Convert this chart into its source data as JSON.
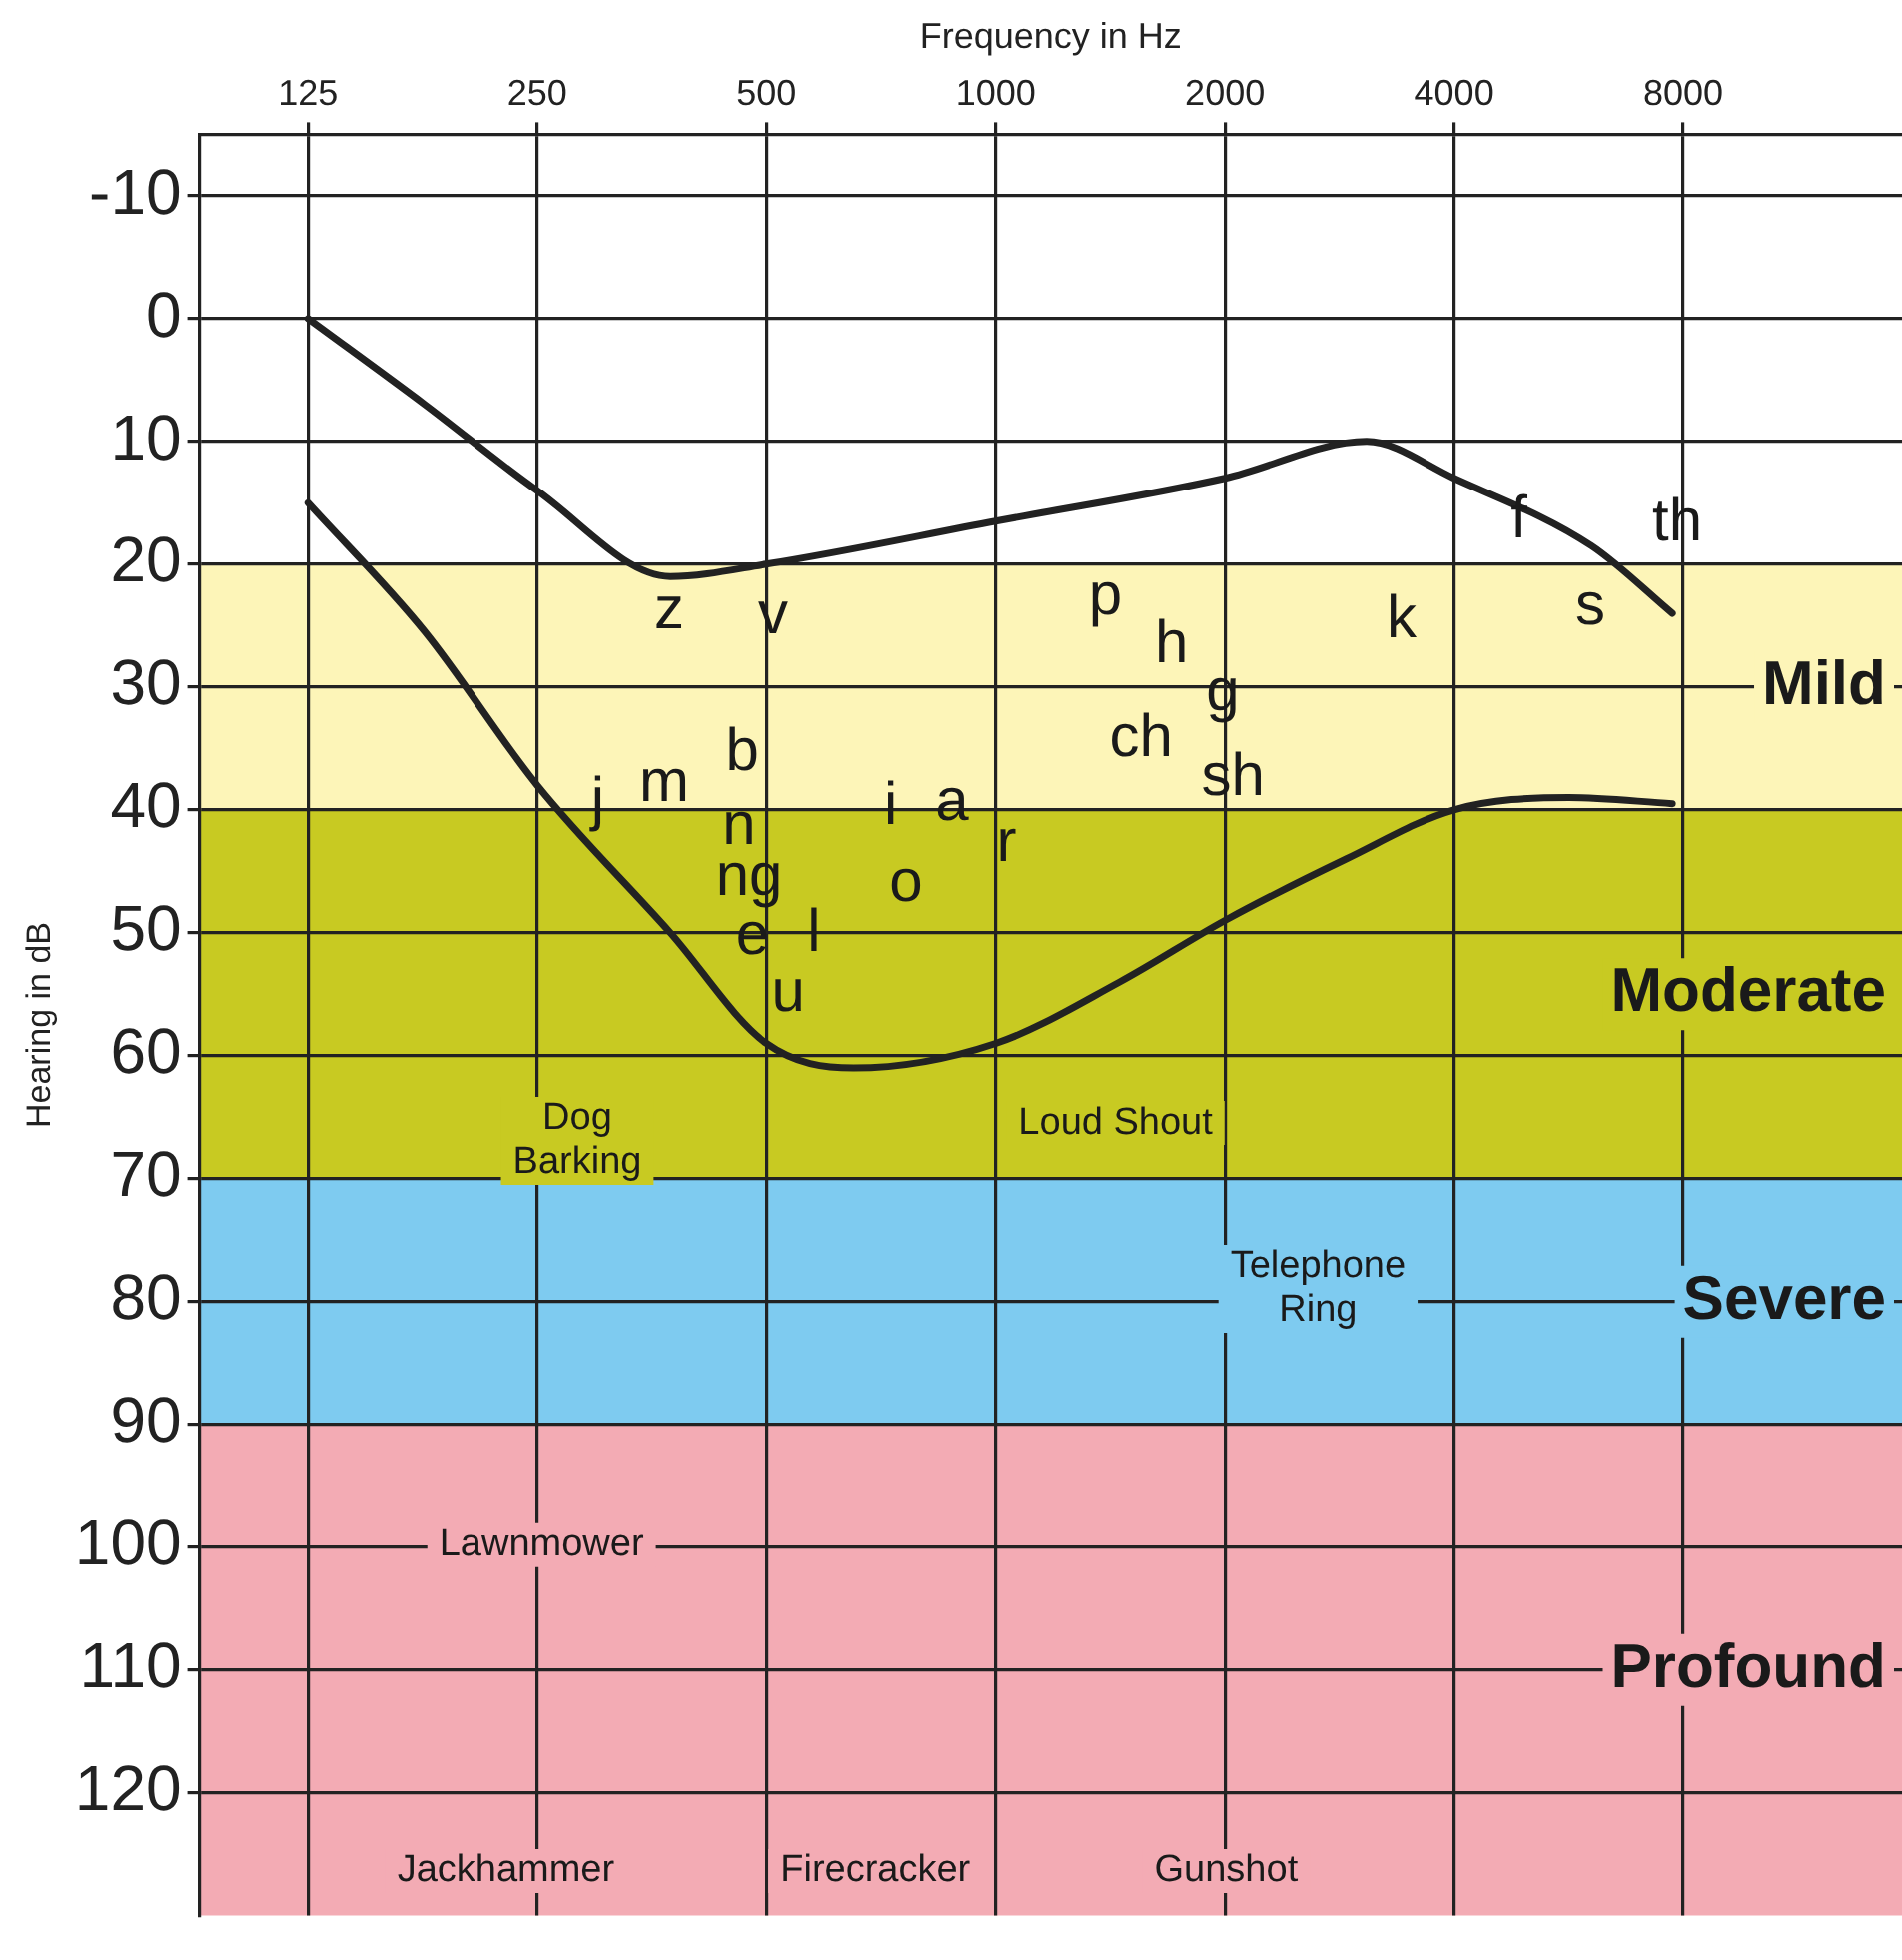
{
  "chart_data": {
    "type": "line",
    "xlabel": "Frequency in Hz",
    "ylabel": "Hearing in dB",
    "log": "x",
    "xlim": [
      90,
      15500
    ],
    "xticks": [
      125,
      250,
      500,
      1000,
      2000,
      4000,
      8000
    ],
    "ylim": [
      130,
      -15
    ],
    "yticks": [
      -10,
      0,
      10,
      20,
      30,
      40,
      50,
      60,
      70,
      80,
      90,
      100,
      110,
      120
    ],
    "grid": true,
    "legend": false,
    "marker": "none",
    "line_style": "solid",
    "series": [
      {
        "color": "#222222",
        "x": [
          125,
          178,
          250,
          374,
          500,
          1000,
          2000,
          3070,
          4000,
          6060,
          7740
        ],
        "values": [
          0,
          7,
          14,
          21,
          20,
          16.5,
          13,
          10,
          13,
          18.5,
          24
        ]
      },
      {
        "color": "#222222",
        "x": [
          125,
          178,
          250,
          374,
          500,
          651,
          1000,
          1455,
          2000,
          2885,
          4000,
          5660,
          7740
        ],
        "values": [
          15,
          25.5,
          38,
          50,
          59,
          61,
          59,
          54,
          49,
          44,
          40,
          39,
          39.5
        ]
      }
    ],
    "bands": [
      {
        "axis": "y",
        "from": 20,
        "to": 40,
        "label": "Mild",
        "color": "#fdf5b8"
      },
      {
        "axis": "y",
        "from": 40,
        "to": 70,
        "label": "Moderate",
        "color": "#c8ca22"
      },
      {
        "axis": "y",
        "from": 70,
        "to": 90,
        "label": "Severe",
        "color": "#7ecbf0"
      },
      {
        "axis": "y",
        "from": 90,
        "to": 130,
        "label": "Profound",
        "color": "#f3abb4"
      }
    ],
    "annotations": [
      "z",
      "v",
      "p",
      "h",
      "g",
      "ch",
      "sh",
      "k",
      "f",
      "s",
      "th",
      "j",
      "m",
      "b",
      "n",
      "ng",
      "e",
      "l",
      "u",
      "i",
      "a",
      "o",
      "r",
      "Dog\nBarking",
      "Loud Shout",
      "Telephone\nRing",
      "Lawnmower",
      "Jackhammer",
      "Firecracker",
      "Gunshot"
    ]
  }
}
